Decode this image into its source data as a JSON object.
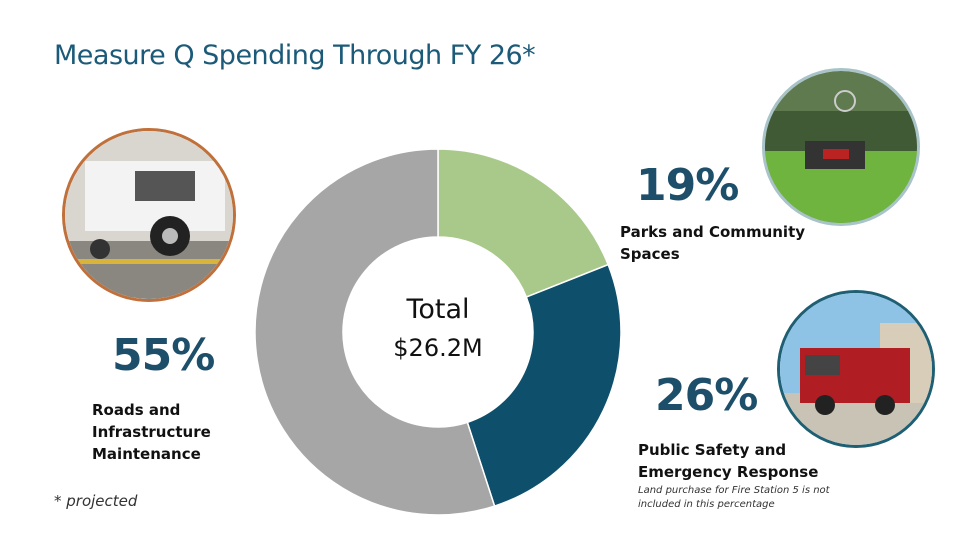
{
  "title": "Measure Q Spending Through FY 26*",
  "footnote": "* projected",
  "center_label": {
    "line1": "Total",
    "line2": "$26.2M"
  },
  "segments": [
    {
      "percent_label": "19%",
      "label_line1": "Parks and Community",
      "label_line2": "Spaces",
      "color": "#a9c98b"
    },
    {
      "percent_label": "26%",
      "label_line1": "Public Safety and",
      "label_line2": "Emergency Response",
      "note_line1": "Land purchase for Fire Station 5 is not",
      "note_line2": "included in this percentage",
      "color": "#0e4f6b"
    },
    {
      "percent_label": "55%",
      "label_line1": "Roads and",
      "label_line2": "Infrastructure",
      "label_line3": "Maintenance",
      "color": "#a6a6a6"
    }
  ],
  "chart_data": {
    "type": "pie",
    "donut": true,
    "title": "Measure Q Spending Through FY 26*",
    "center_text": "Total $26.2M",
    "categories": [
      "Parks and Community Spaces",
      "Public Safety and Emergency Response",
      "Roads and Infrastructure Maintenance"
    ],
    "values": [
      19,
      26,
      55
    ],
    "unit": "%",
    "colors": [
      "#a9c98b",
      "#0e4f6b",
      "#a6a6a6"
    ]
  }
}
